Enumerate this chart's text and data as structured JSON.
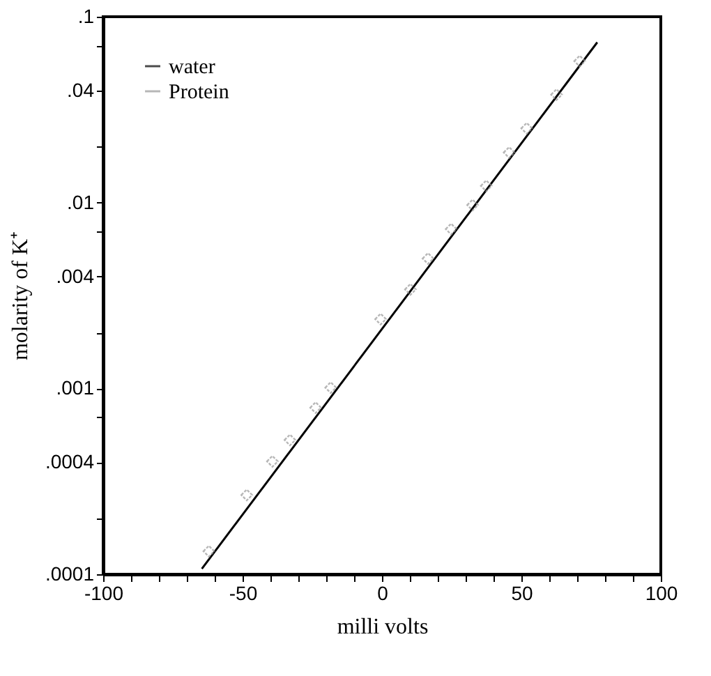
{
  "chart_data": {
    "type": "line",
    "xlabel": "milli  volts",
    "ylabel": "molarity of K⁺",
    "log": "y",
    "xlim": [
      -100,
      100
    ],
    "xticks": [
      -100,
      {
        "value": -90,
        "label": null
      },
      {
        "value": -80,
        "label": null
      },
      {
        "value": -70,
        "label": null
      },
      {
        "value": -60,
        "label": null
      },
      -50,
      {
        "value": -40,
        "label": null
      },
      {
        "value": -30,
        "label": null
      },
      {
        "value": -20,
        "label": null
      },
      {
        "value": -10,
        "label": null
      },
      0,
      {
        "value": 10,
        "label": null
      },
      {
        "value": 20,
        "label": null
      },
      {
        "value": 30,
        "label": null
      },
      {
        "value": 40,
        "label": null
      },
      50,
      {
        "value": 60,
        "label": null
      },
      {
        "value": 70,
        "label": null
      },
      {
        "value": 80,
        "label": null
      },
      {
        "value": 90,
        "label": null
      },
      100
    ],
    "ylim": [
      0.0001,
      0.1
    ],
    "yticks": [
      {
        "value": 0.0001,
        "label": ".0001"
      },
      {
        "value": 0.0002,
        "label": null
      },
      {
        "value": 0.0004,
        "label": ".0004"
      },
      {
        "value": 0.0007,
        "label": null
      },
      {
        "value": 0.001,
        "label": ".001"
      },
      {
        "value": 0.002,
        "label": null
      },
      {
        "value": 0.004,
        "label": ".004"
      },
      {
        "value": 0.007,
        "label": null
      },
      {
        "value": 0.01,
        "label": ".01"
      },
      {
        "value": 0.02,
        "label": null
      },
      {
        "value": 0.04,
        "label": ".04"
      },
      {
        "value": 0.07,
        "label": null
      },
      {
        "value": 0.1,
        "label": ".1"
      }
    ],
    "grid": false,
    "legend": "top left",
    "series": [
      {
        "name": "water",
        "color": "#000000",
        "marker": "none",
        "line_style": "solid",
        "x": [
          -64.6,
          77.2
        ],
        "values": [
          0.000107,
          0.0728
        ]
      },
      {
        "name": "Protein",
        "type": "scatter",
        "color": "#999999",
        "marker": "diamond",
        "x": [
          -62.1,
          -48.5,
          -39.3,
          -33.0,
          -23.8,
          -18.4,
          -0.5,
          10.2,
          16.5,
          24.8,
          32.5,
          37.4,
          45.6,
          51.9,
          62.6,
          70.9
        ],
        "values": [
          0.000133,
          0.000267,
          0.000405,
          0.000528,
          0.000788,
          0.00101,
          0.00236,
          0.00341,
          0.005,
          0.0072,
          0.0097,
          0.0123,
          0.0186,
          0.0251,
          0.0381,
          0.0577
        ]
      }
    ]
  }
}
